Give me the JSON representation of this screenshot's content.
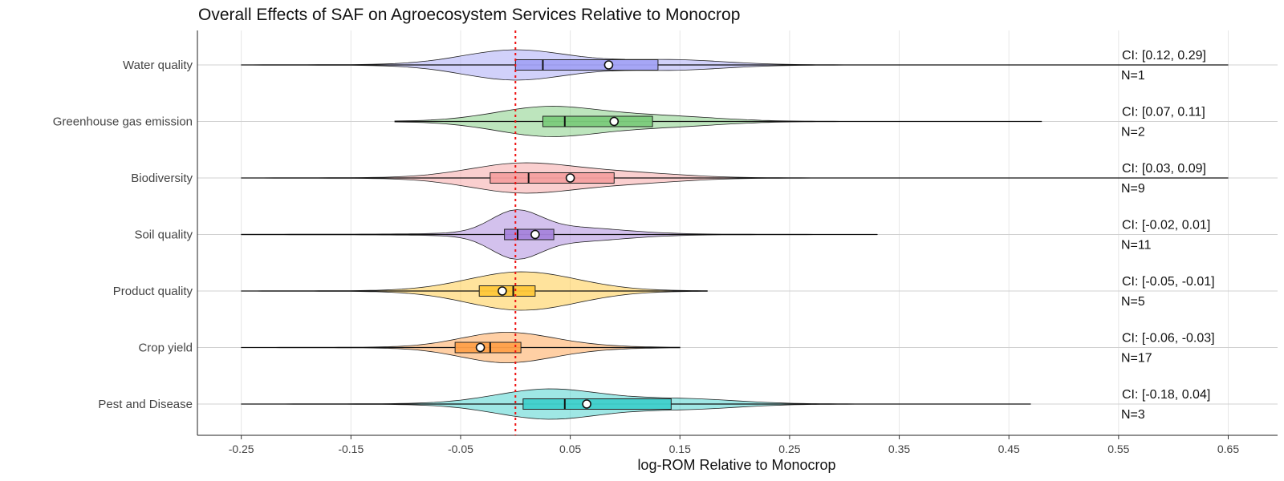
{
  "chart_data": {
    "type": "violin",
    "title": "Overall Effects of SAF on Agroecosystem Services Relative to Monocrop",
    "xlabel": "log-ROM Relative to Monocrop",
    "ylabel": "",
    "xlim": [
      -0.29,
      0.695
    ],
    "xticks": [
      -0.25,
      -0.15,
      -0.05,
      0.05,
      0.15,
      0.25,
      0.35,
      0.45,
      0.55,
      0.65
    ],
    "xtick_labels": [
      "-0.25",
      "-0.15",
      "-0.05",
      "0.05",
      "0.15",
      "0.25",
      "0.35",
      "0.45",
      "0.55",
      "0.65"
    ],
    "reference_line": 0,
    "grid": true,
    "series": [
      {
        "category": "Water quality",
        "color": "#a3a3f5",
        "range": [
          -0.25,
          0.65
        ],
        "q1": 0.0,
        "median": 0.025,
        "q3": 0.13,
        "mean": 0.085,
        "mode": 0.0,
        "ci": "CI: [0.12, 0.29]",
        "n": "N=1"
      },
      {
        "category": "Greenhouse gas emission",
        "color": "#7bcb7b",
        "range": [
          -0.11,
          0.48
        ],
        "q1": 0.025,
        "median": 0.045,
        "q3": 0.125,
        "mean": 0.09,
        "mode": 0.03,
        "ci": "CI: [0.07, 0.11]",
        "n": "N=2"
      },
      {
        "category": "Biodiversity",
        "color": "#f5a0a0",
        "range": [
          -0.25,
          0.65
        ],
        "q1": -0.023,
        "median": 0.012,
        "q3": 0.09,
        "mean": 0.05,
        "mode": 0.005,
        "ci": "CI: [0.03, 0.09]",
        "n": "N=9"
      },
      {
        "category": "Soil quality",
        "color": "#a784dc",
        "range": [
          -0.25,
          0.33
        ],
        "q1": -0.01,
        "median": 0.002,
        "q3": 0.035,
        "mean": 0.018,
        "mode": 0.0,
        "ci": "CI: [-0.02, 0.01]",
        "n": "N=11"
      },
      {
        "category": "Product quality",
        "color": "#ffc83a",
        "range": [
          -0.25,
          0.175
        ],
        "q1": -0.033,
        "median": -0.002,
        "q3": 0.018,
        "mean": -0.012,
        "mode": 0.0,
        "ci": "CI: [-0.05, -0.01]",
        "n": "N=5"
      },
      {
        "category": "Crop yield",
        "color": "#ffa04a",
        "range": [
          -0.25,
          0.15
        ],
        "q1": -0.055,
        "median": -0.023,
        "q3": 0.005,
        "mean": -0.032,
        "mode": -0.012,
        "ci": "CI: [-0.06, -0.03]",
        "n": "N=17"
      },
      {
        "category": "Pest and Disease",
        "color": "#40d0cc",
        "range": [
          -0.25,
          0.47
        ],
        "q1": 0.007,
        "median": 0.045,
        "q3": 0.142,
        "mean": 0.065,
        "mode": 0.03,
        "ci": "CI: [-0.18, 0.04]",
        "n": "N=3"
      }
    ]
  }
}
